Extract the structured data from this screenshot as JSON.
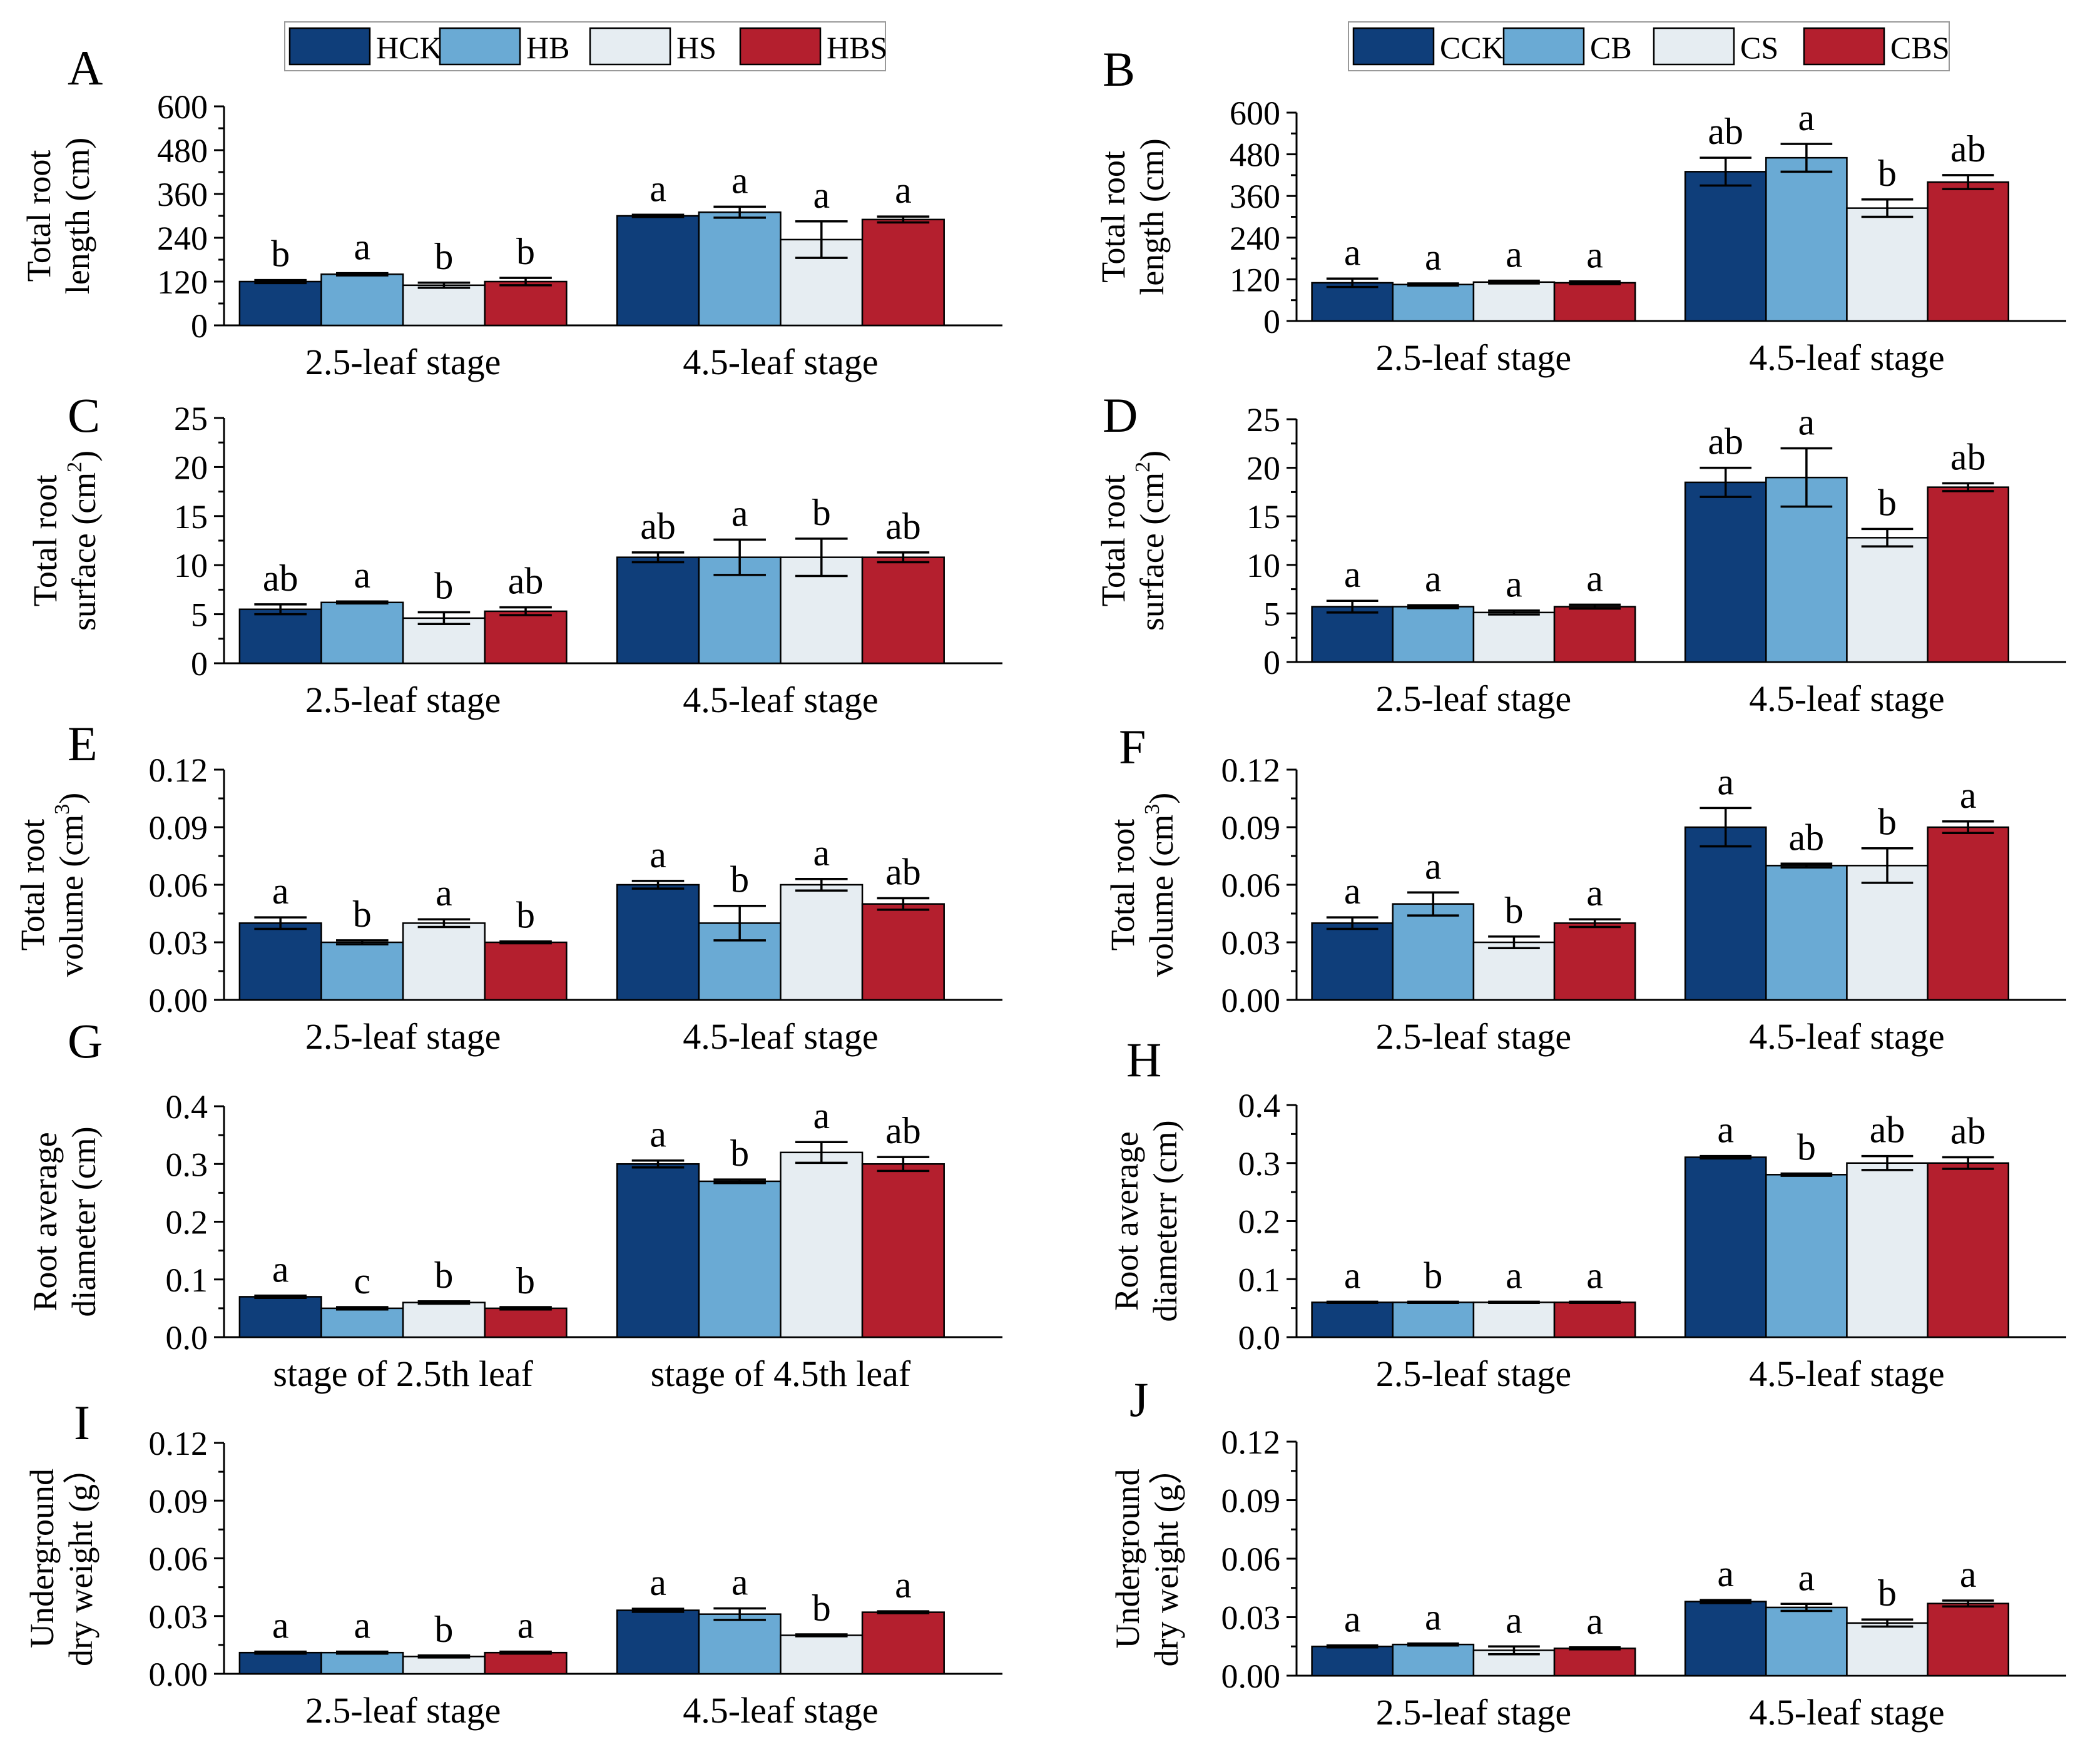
{
  "colors": {
    "CK": "#0f3e7a",
    "B": "#6aaad4",
    "S": "#e6edf2",
    "BS": "#b41f2e"
  },
  "legends": [
    {
      "items": [
        {
          "label": "HCK",
          "key": "CK"
        },
        {
          "label": "HB",
          "key": "B"
        },
        {
          "label": "HS",
          "key": "S"
        },
        {
          "label": "HBS",
          "key": "BS"
        }
      ]
    },
    {
      "items": [
        {
          "label": "CCK",
          "key": "CK"
        },
        {
          "label": "CB",
          "key": "B"
        },
        {
          "label": "CS",
          "key": "S"
        },
        {
          "label": "CBS",
          "key": "BS"
        }
      ]
    }
  ],
  "chart_data": [
    {
      "id": "A",
      "type": "bar",
      "panel_label": "A",
      "ylabel_lines": [
        "Total root",
        "length (cm)"
      ],
      "ylabel_sup": "",
      "ylim": [
        0,
        600
      ],
      "yticks": [
        "0",
        "120",
        "240",
        "360",
        "480",
        "600"
      ],
      "categories": [
        "2.5-leaf stage",
        "4.5-leaf stage"
      ],
      "series": [
        {
          "name": "HCK",
          "key": "CK",
          "values": [
            120,
            300
          ],
          "err": [
            4,
            3
          ],
          "letters": [
            "b",
            "a"
          ]
        },
        {
          "name": "HB",
          "key": "B",
          "values": [
            140,
            310
          ],
          "err": [
            3,
            15
          ],
          "letters": [
            "a",
            "a"
          ]
        },
        {
          "name": "HS",
          "key": "S",
          "values": [
            110,
            235
          ],
          "err": [
            7,
            50
          ],
          "letters": [
            "b",
            "a"
          ]
        },
        {
          "name": "HBS",
          "key": "BS",
          "values": [
            120,
            290
          ],
          "err": [
            10,
            8
          ],
          "letters": [
            "b",
            "a"
          ]
        }
      ]
    },
    {
      "id": "B",
      "type": "bar",
      "panel_label": "B",
      "ylabel_lines": [
        "Total root",
        "length (cm)"
      ],
      "ylabel_sup": "",
      "ylim": [
        0,
        600
      ],
      "yticks": [
        "0",
        "120",
        "240",
        "360",
        "480",
        "600"
      ],
      "categories": [
        "2.5-leaf stage",
        "4.5-leaf stage"
      ],
      "series": [
        {
          "name": "CCK",
          "key": "CK",
          "values": [
            110,
            430
          ],
          "err": [
            12,
            40
          ],
          "letters": [
            "a",
            "ab"
          ]
        },
        {
          "name": "CB",
          "key": "B",
          "values": [
            105,
            470
          ],
          "err": [
            3,
            40
          ],
          "letters": [
            "a",
            "a"
          ]
        },
        {
          "name": "CS",
          "key": "S",
          "values": [
            112,
            325
          ],
          "err": [
            4,
            25
          ],
          "letters": [
            "a",
            "b"
          ]
        },
        {
          "name": "CBS",
          "key": "BS",
          "values": [
            110,
            400
          ],
          "err": [
            4,
            20
          ],
          "letters": [
            "a",
            "ab"
          ]
        }
      ]
    },
    {
      "id": "C",
      "type": "bar",
      "panel_label": "C",
      "ylabel_lines": [
        "Total root",
        "surface (cm"
      ],
      "ylabel_sup": "2",
      "ylim": [
        0,
        25
      ],
      "yticks": [
        "0",
        "5",
        "10",
        "15",
        "20",
        "25"
      ],
      "categories": [
        "2.5-leaf stage",
        "4.5-leaf stage"
      ],
      "series": [
        {
          "name": "HCK",
          "key": "CK",
          "values": [
            5.5,
            10.8
          ],
          "err": [
            0.5,
            0.5
          ],
          "letters": [
            "ab",
            "ab"
          ]
        },
        {
          "name": "HB",
          "key": "B",
          "values": [
            6.2,
            10.8
          ],
          "err": [
            0.1,
            1.8
          ],
          "letters": [
            "a",
            "a"
          ]
        },
        {
          "name": "HS",
          "key": "S",
          "values": [
            4.6,
            10.8
          ],
          "err": [
            0.6,
            1.9
          ],
          "letters": [
            "b",
            "b"
          ]
        },
        {
          "name": "HBS",
          "key": "BS",
          "values": [
            5.3,
            10.8
          ],
          "err": [
            0.4,
            0.5
          ],
          "letters": [
            "ab",
            "ab"
          ]
        }
      ]
    },
    {
      "id": "D",
      "type": "bar",
      "panel_label": "D",
      "ylabel_lines": [
        "Total root",
        "surface (cm"
      ],
      "ylabel_sup": "2",
      "ylim": [
        0,
        25
      ],
      "yticks": [
        "0",
        "5",
        "10",
        "15",
        "20",
        "25"
      ],
      "categories": [
        "2.5-leaf stage",
        "4.5-leaf stage"
      ],
      "series": [
        {
          "name": "CCK",
          "key": "CK",
          "values": [
            5.7,
            18.5
          ],
          "err": [
            0.6,
            1.5
          ],
          "letters": [
            "a",
            "ab"
          ]
        },
        {
          "name": "CB",
          "key": "B",
          "values": [
            5.7,
            19.0
          ],
          "err": [
            0.15,
            3.0
          ],
          "letters": [
            "a",
            "a"
          ]
        },
        {
          "name": "CS",
          "key": "S",
          "values": [
            5.1,
            12.8
          ],
          "err": [
            0.2,
            0.9
          ],
          "letters": [
            "a",
            "b"
          ]
        },
        {
          "name": "CBS",
          "key": "BS",
          "values": [
            5.7,
            18.0
          ],
          "err": [
            0.2,
            0.4
          ],
          "letters": [
            "a",
            "ab"
          ]
        }
      ]
    },
    {
      "id": "E",
      "type": "bar",
      "panel_label": "E",
      "ylabel_lines": [
        "Total root",
        "volume (cm"
      ],
      "ylabel_sup": "3",
      "ylim": [
        0,
        0.12
      ],
      "yticks": [
        "0.00",
        "0.03",
        "0.06",
        "0.09",
        "0.12"
      ],
      "categories": [
        "2.5-leaf stage",
        "4.5-leaf stage"
      ],
      "series": [
        {
          "name": "HCK",
          "key": "CK",
          "values": [
            0.04,
            0.06
          ],
          "err": [
            0.003,
            0.002
          ],
          "letters": [
            "a",
            "a"
          ]
        },
        {
          "name": "HB",
          "key": "B",
          "values": [
            0.03,
            0.04
          ],
          "err": [
            0.001,
            0.009
          ],
          "letters": [
            "b",
            "b"
          ]
        },
        {
          "name": "HS",
          "key": "S",
          "values": [
            0.04,
            0.06
          ],
          "err": [
            0.002,
            0.003
          ],
          "letters": [
            "a",
            "a"
          ]
        },
        {
          "name": "HBS",
          "key": "BS",
          "values": [
            0.03,
            0.05
          ],
          "err": [
            0.0005,
            0.003
          ],
          "letters": [
            "b",
            "ab"
          ]
        }
      ]
    },
    {
      "id": "F",
      "type": "bar",
      "panel_label": "F",
      "ylabel_lines": [
        "Total root",
        "volume (cm"
      ],
      "ylabel_sup": "3",
      "ylim": [
        0,
        0.12
      ],
      "yticks": [
        "0.00",
        "0.03",
        "0.06",
        "0.09",
        "0.12"
      ],
      "categories": [
        "2.5-leaf stage",
        "4.5-leaf stage"
      ],
      "series": [
        {
          "name": "CCK",
          "key": "CK",
          "values": [
            0.04,
            0.09
          ],
          "err": [
            0.003,
            0.01
          ],
          "letters": [
            "a",
            "a"
          ]
        },
        {
          "name": "CB",
          "key": "B",
          "values": [
            0.05,
            0.07
          ],
          "err": [
            0.006,
            0.001
          ],
          "letters": [
            "a",
            "ab"
          ]
        },
        {
          "name": "CS",
          "key": "S",
          "values": [
            0.03,
            0.07
          ],
          "err": [
            0.003,
            0.009
          ],
          "letters": [
            "b",
            "b"
          ]
        },
        {
          "name": "CBS",
          "key": "BS",
          "values": [
            0.04,
            0.09
          ],
          "err": [
            0.002,
            0.003
          ],
          "letters": [
            "a",
            "a"
          ]
        }
      ]
    },
    {
      "id": "G",
      "type": "bar",
      "panel_label": "G",
      "ylabel_lines": [
        "Root average",
        "diameter (cm)"
      ],
      "ylabel_sup": "",
      "ylim": [
        0,
        0.4
      ],
      "yticks": [
        "0.0",
        "0.1",
        "0.2",
        "0.3",
        "0.4"
      ],
      "categories": [
        "stage of 2.5th leaf",
        "stage of 4.5th leaf"
      ],
      "series": [
        {
          "name": "HCK",
          "key": "CK",
          "values": [
            0.07,
            0.3
          ],
          "err": [
            0.002,
            0.006
          ],
          "letters": [
            "a",
            "a"
          ]
        },
        {
          "name": "HB",
          "key": "B",
          "values": [
            0.05,
            0.27
          ],
          "err": [
            0.002,
            0.003
          ],
          "letters": [
            "c",
            "b"
          ]
        },
        {
          "name": "HS",
          "key": "S",
          "values": [
            0.06,
            0.32
          ],
          "err": [
            0.002,
            0.018
          ],
          "letters": [
            "b",
            "a"
          ]
        },
        {
          "name": "HBS",
          "key": "BS",
          "values": [
            0.05,
            0.3
          ],
          "err": [
            0.002,
            0.012
          ],
          "letters": [
            "b",
            "ab"
          ]
        }
      ]
    },
    {
      "id": "H",
      "type": "bar",
      "panel_label": "H",
      "ylabel_lines": [
        "Root average",
        "diameterr (cm)"
      ],
      "ylabel_sup": "",
      "ylim": [
        0,
        0.4
      ],
      "yticks": [
        "0.0",
        "0.1",
        "0.2",
        "0.3",
        "0.4"
      ],
      "categories": [
        "2.5-leaf stage",
        "4.5-leaf stage"
      ],
      "series": [
        {
          "name": "CCK",
          "key": "CK",
          "values": [
            0.06,
            0.31
          ],
          "err": [
            0.001,
            0.002
          ],
          "letters": [
            "a",
            "a"
          ]
        },
        {
          "name": "CB",
          "key": "B",
          "values": [
            0.06,
            0.28
          ],
          "err": [
            0.001,
            0.002
          ],
          "letters": [
            "b",
            "b"
          ]
        },
        {
          "name": "CS",
          "key": "S",
          "values": [
            0.06,
            0.3
          ],
          "err": [
            0.001,
            0.012
          ],
          "letters": [
            "a",
            "ab"
          ]
        },
        {
          "name": "CBS",
          "key": "BS",
          "values": [
            0.06,
            0.3
          ],
          "err": [
            0.001,
            0.01
          ],
          "letters": [
            "a",
            "ab"
          ]
        }
      ]
    },
    {
      "id": "I",
      "type": "bar",
      "panel_label": "I",
      "ylabel_lines": [
        "Underground",
        "dry weight (g）"
      ],
      "ylabel_sup": "",
      "ylim": [
        0,
        0.12
      ],
      "yticks": [
        "0.00",
        "0.03",
        "0.06",
        "0.09",
        "0.12"
      ],
      "categories": [
        "2.5-leaf stage",
        "4.5-leaf stage"
      ],
      "series": [
        {
          "name": "HCK",
          "key": "CK",
          "values": [
            0.011,
            0.033
          ],
          "err": [
            0.0005,
            0.0008
          ],
          "letters": [
            "a",
            "a"
          ]
        },
        {
          "name": "HB",
          "key": "B",
          "values": [
            0.011,
            0.031
          ],
          "err": [
            0.0005,
            0.003
          ],
          "letters": [
            "a",
            "a"
          ]
        },
        {
          "name": "HS",
          "key": "S",
          "values": [
            0.009,
            0.02
          ],
          "err": [
            0.0005,
            0.0005
          ],
          "letters": [
            "b",
            "b"
          ]
        },
        {
          "name": "HBS",
          "key": "BS",
          "values": [
            0.011,
            0.032
          ],
          "err": [
            0.0005,
            0.0005
          ],
          "letters": [
            "a",
            "a"
          ]
        }
      ]
    },
    {
      "id": "J",
      "type": "bar",
      "panel_label": "J",
      "ylabel_lines": [
        "Underground",
        "dry weight (g）"
      ],
      "ylabel_sup": "",
      "ylim": [
        0,
        0.12
      ],
      "yticks": [
        "0.00",
        "0.03",
        "0.06",
        "0.09",
        "0.12"
      ],
      "categories": [
        "2.5-leaf stage",
        "4.5-leaf stage"
      ],
      "series": [
        {
          "name": "CCK",
          "key": "CK",
          "values": [
            0.015,
            0.038
          ],
          "err": [
            0.0005,
            0.0008
          ],
          "letters": [
            "a",
            "a"
          ]
        },
        {
          "name": "CB",
          "key": "B",
          "values": [
            0.016,
            0.035
          ],
          "err": [
            0.0005,
            0.0018
          ],
          "letters": [
            "a",
            "a"
          ]
        },
        {
          "name": "CS",
          "key": "S",
          "values": [
            0.013,
            0.027
          ],
          "err": [
            0.002,
            0.0018
          ],
          "letters": [
            "a",
            "b"
          ]
        },
        {
          "name": "CBS",
          "key": "BS",
          "values": [
            0.014,
            0.037
          ],
          "err": [
            0.0005,
            0.0015
          ],
          "letters": [
            "a",
            "a"
          ]
        }
      ]
    }
  ]
}
